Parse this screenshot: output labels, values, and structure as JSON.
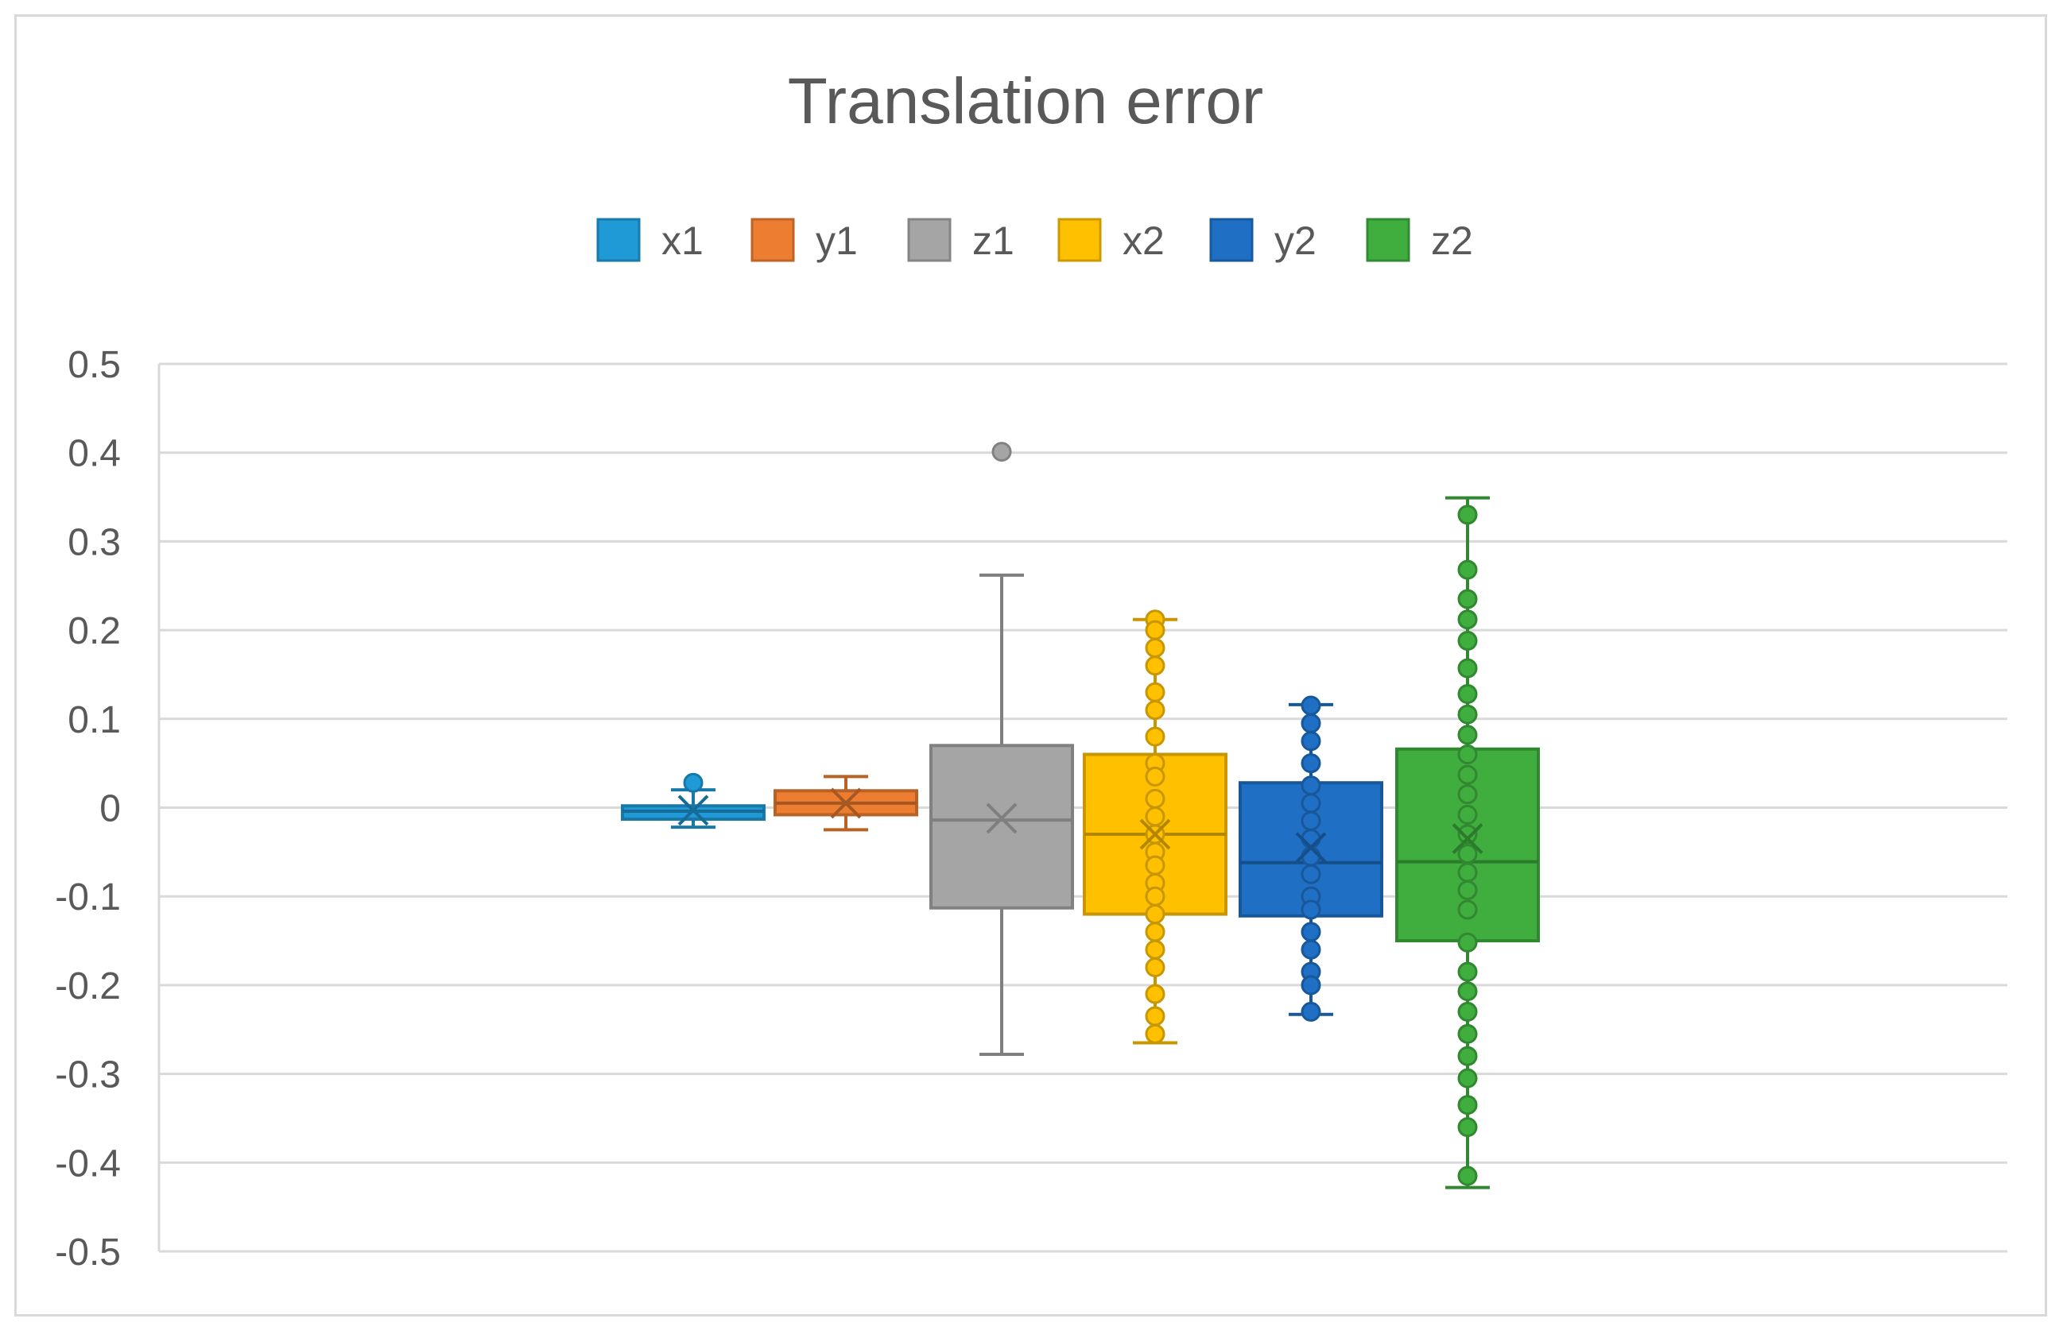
{
  "chart_data": {
    "type": "boxplot",
    "title": "Translation error",
    "xlabel": "",
    "ylabel": "",
    "ylim": [
      -0.5,
      0.5
    ],
    "yticks": [
      "0.5",
      "0.4",
      "0.3",
      "0.2",
      "0.1",
      "0",
      "-0.1",
      "-0.2",
      "-0.3",
      "-0.4",
      "-0.5"
    ],
    "ytick_values": [
      0.5,
      0.4,
      0.3,
      0.2,
      0.1,
      0,
      -0.1,
      -0.2,
      -0.3,
      -0.4,
      -0.5
    ],
    "grid": true,
    "legend_position": "top",
    "series": [
      {
        "name": "x1",
        "color": "#1f9ad6",
        "show_points": false,
        "min": -0.022,
        "q1": -0.013,
        "median": -0.004,
        "q3": 0.002,
        "max": 0.02,
        "mean": -0.003,
        "outliers": [
          0.028
        ],
        "points": []
      },
      {
        "name": "y1",
        "color": "#ed7d31",
        "show_points": false,
        "min": -0.025,
        "q1": -0.008,
        "median": 0.005,
        "q3": 0.019,
        "max": 0.035,
        "mean": 0.005,
        "outliers": [],
        "points": []
      },
      {
        "name": "z1",
        "color": "#a5a5a5",
        "show_points": false,
        "min": -0.278,
        "q1": -0.113,
        "median": -0.014,
        "q3": 0.07,
        "max": 0.262,
        "mean": -0.012,
        "outliers": [
          0.401
        ],
        "points": []
      },
      {
        "name": "x2",
        "color": "#ffc000",
        "show_points": true,
        "min": -0.265,
        "q1": -0.12,
        "median": -0.03,
        "q3": 0.06,
        "max": 0.212,
        "mean": -0.03,
        "outliers": [],
        "points": [
          0.212,
          0.2,
          0.18,
          0.16,
          0.13,
          0.11,
          0.08,
          0.05,
          0.035,
          0.01,
          -0.01,
          -0.03,
          -0.05,
          -0.065,
          -0.085,
          -0.1,
          -0.12,
          -0.14,
          -0.16,
          -0.18,
          -0.21,
          -0.235,
          -0.255
        ]
      },
      {
        "name": "y2",
        "color": "#1f6fc5",
        "show_points": true,
        "min": -0.233,
        "q1": -0.122,
        "median": -0.062,
        "q3": 0.028,
        "max": 0.116,
        "mean": -0.045,
        "outliers": [],
        "points": [
          0.115,
          0.095,
          0.075,
          0.05,
          0.025,
          0.005,
          -0.015,
          -0.035,
          -0.055,
          -0.075,
          -0.1,
          -0.115,
          -0.14,
          -0.16,
          -0.185,
          -0.2,
          -0.23
        ]
      },
      {
        "name": "z2",
        "color": "#3fae3e",
        "show_points": true,
        "min": -0.428,
        "q1": -0.15,
        "median": -0.061,
        "q3": 0.066,
        "max": 0.349,
        "mean": -0.035,
        "outliers": [],
        "points": [
          0.33,
          0.268,
          0.235,
          0.212,
          0.188,
          0.157,
          0.128,
          0.105,
          0.082,
          0.06,
          0.037,
          0.015,
          -0.008,
          -0.03,
          -0.052,
          -0.073,
          -0.093,
          -0.115,
          -0.152,
          -0.185,
          -0.207,
          -0.23,
          -0.255,
          -0.28,
          -0.305,
          -0.335,
          -0.36,
          -0.415
        ]
      }
    ]
  }
}
